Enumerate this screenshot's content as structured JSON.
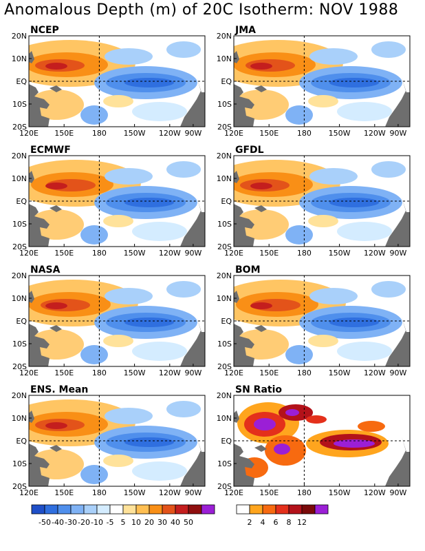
{
  "title": "Anomalous Depth (m) of 20C Isotherm: NOV 1988",
  "lat_ticks": [
    "20N",
    "10N",
    "EQ",
    "10S",
    "20S"
  ],
  "lon_ticks": [
    "120E",
    "150E",
    "180",
    "150W",
    "120W",
    "90W"
  ],
  "panels": [
    {
      "name": "NCEP",
      "kind": "anom"
    },
    {
      "name": "JMA",
      "kind": "anom"
    },
    {
      "name": "ECMWF",
      "kind": "anom"
    },
    {
      "name": "GFDL",
      "kind": "anom"
    },
    {
      "name": "NASA",
      "kind": "anom"
    },
    {
      "name": "BOM",
      "kind": "anom"
    },
    {
      "name": "ENS. Mean",
      "kind": "anom"
    },
    {
      "name": "SN Ratio",
      "kind": "snr"
    }
  ],
  "colorbar_anom": {
    "colors": [
      "#1f4fc8",
      "#2f6fdf",
      "#4f8fec",
      "#7fb2f5",
      "#a9d0fa",
      "#d4ecff",
      "#ffffff",
      "#ffe29a",
      "#ffbf52",
      "#f98f16",
      "#e3531a",
      "#c41e1e",
      "#8f0f0f",
      "#9b1fd6"
    ],
    "labels": [
      "-50",
      "-40",
      "-30",
      "-20",
      "-10",
      "-5",
      "5",
      "10",
      "20",
      "30",
      "40",
      "50"
    ]
  },
  "colorbar_snr": {
    "colors": [
      "#ffffff",
      "#ffa51e",
      "#f76a10",
      "#e4301b",
      "#b3121a",
      "#7a0a0a",
      "#9b1fd6"
    ],
    "labels": [
      "2",
      "4",
      "6",
      "8",
      "12"
    ]
  },
  "land_color": "#6e6e6e"
}
